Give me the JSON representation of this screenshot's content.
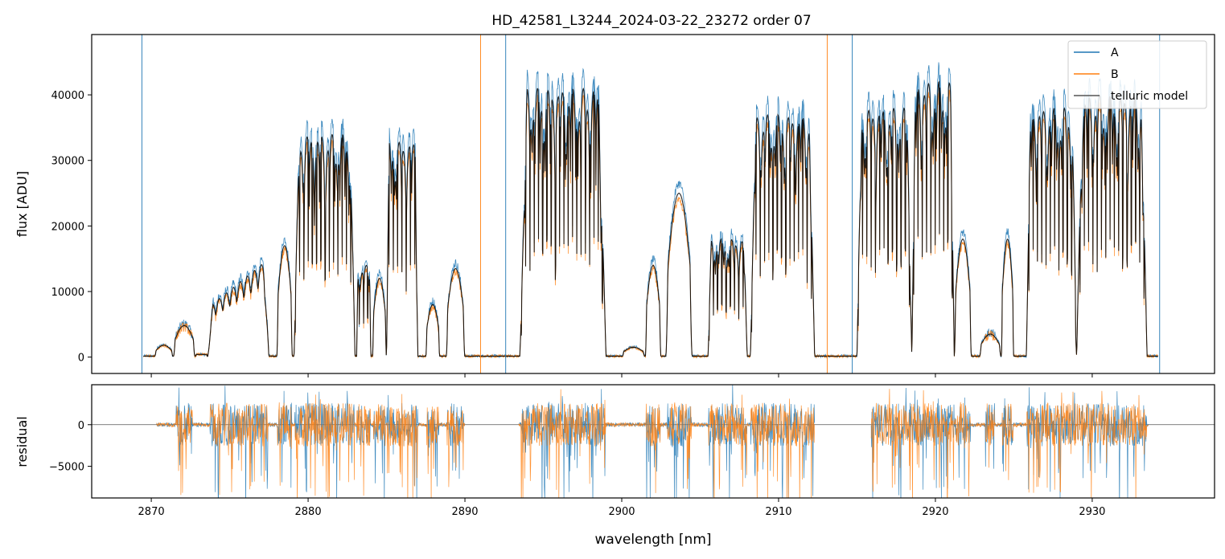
{
  "title": "HD_42581_L3244_2024-03-22_23272  order 07",
  "colors": {
    "A": "#1f77b4",
    "B": "#ff7f0e",
    "model": "#000000"
  },
  "chart_data": [
    {
      "type": "line",
      "panel": "top",
      "title": "HD_42581_L3244_2024-03-22_23272  order 07",
      "xlabel": "",
      "ylabel": "flux [ADU]",
      "xlim": [
        2866.2,
        2937.8
      ],
      "ylim": [
        -2500,
        49200
      ],
      "yticks": [
        0,
        10000,
        20000,
        30000,
        40000
      ],
      "ytick_labels": [
        "0",
        "10000",
        "20000",
        "30000",
        "40000"
      ],
      "xticks": [
        2870,
        2880,
        2890,
        2900,
        2910,
        2920,
        2930
      ],
      "grid": false,
      "legend_position": "top-right",
      "legend": [
        "A",
        "B",
        "telluric model"
      ],
      "model_bands": [
        [
          2870.2,
          2871.4,
          1800,
          "hump"
        ],
        [
          2871.4,
          2872.8,
          4800,
          "hump"
        ],
        [
          2872.8,
          2873.6,
          400,
          "flat"
        ],
        [
          2873.6,
          2877.5,
          15000,
          "ramp"
        ],
        [
          2878.0,
          2879.0,
          17000,
          "hump"
        ],
        [
          2879.1,
          2883.0,
          34000,
          "lines"
        ],
        [
          2883.1,
          2884.0,
          14000,
          "lines"
        ],
        [
          2884.1,
          2885.0,
          12000,
          "hump"
        ],
        [
          2885.0,
          2887.0,
          33000,
          "lines"
        ],
        [
          2887.5,
          2888.4,
          8000,
          "hump"
        ],
        [
          2888.8,
          2890.0,
          13500,
          "hump"
        ],
        [
          2893.5,
          2899.0,
          41000,
          "lines"
        ],
        [
          2900.0,
          2901.5,
          1500,
          "hump"
        ],
        [
          2901.5,
          2902.5,
          14000,
          "hump"
        ],
        [
          2902.8,
          2904.5,
          25000,
          "hump"
        ],
        [
          2905.5,
          2908.0,
          18000,
          "lines"
        ],
        [
          2908.2,
          2912.3,
          37000,
          "lines"
        ],
        [
          2915.0,
          2918.5,
          38000,
          "lines"
        ],
        [
          2918.5,
          2921.2,
          42000,
          "lines"
        ],
        [
          2921.2,
          2922.3,
          18000,
          "hump"
        ],
        [
          2922.8,
          2924.2,
          3500,
          "hump"
        ],
        [
          2924.2,
          2925.0,
          18000,
          "hump"
        ],
        [
          2925.8,
          2929.0,
          38000,
          "lines"
        ],
        [
          2929.0,
          2933.5,
          40000,
          "lines"
        ]
      ],
      "spikes": [
        {
          "series": "A",
          "x": 2869.4
        },
        {
          "series": "B",
          "x": 2891.0
        },
        {
          "series": "A",
          "x": 2892.6
        },
        {
          "series": "B",
          "x": 2913.1
        },
        {
          "series": "A",
          "x": 2914.7
        },
        {
          "series": "A",
          "x": 2934.3
        }
      ],
      "series": [
        {
          "name": "A",
          "color": "#1f77b4",
          "scale": 1.06,
          "noise": 900
        },
        {
          "name": "B",
          "color": "#ff7f0e",
          "scale": 0.96,
          "noise": 900
        },
        {
          "name": "telluric model",
          "color": "#000000",
          "scale": 1.0,
          "noise": 0
        }
      ]
    },
    {
      "type": "line",
      "panel": "bottom",
      "xlabel": "wavelength [nm]",
      "ylabel": "residual",
      "xlim": [
        2866.2,
        2937.8
      ],
      "ylim": [
        -8800,
        4800
      ],
      "yticks": [
        0,
        -5000
      ],
      "ytick_labels": [
        "0",
        "−5000"
      ],
      "xticks": [
        2870,
        2880,
        2890,
        2900,
        2910,
        2920,
        2930
      ],
      "xtick_labels": [
        "2870",
        "2880",
        "2890",
        "2900",
        "2910",
        "2920",
        "2930"
      ],
      "zero_line": true,
      "segments": [
        [
          2870.3,
          2890.0
        ],
        [
          2893.4,
          2912.3
        ],
        [
          2915.9,
          2933.6
        ]
      ],
      "series": [
        {
          "name": "A",
          "color": "#1f77b4"
        },
        {
          "name": "B",
          "color": "#ff7f0e"
        }
      ]
    }
  ]
}
